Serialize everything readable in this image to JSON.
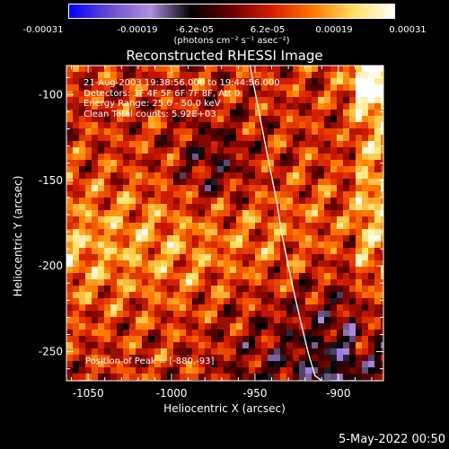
{
  "colorbar": {
    "tick_labels": [
      "-0.00031",
      "-0.00019",
      "-6.2e-05",
      "6.2e-05",
      "0.00019",
      "0.00031"
    ],
    "units": "(photons cm⁻² s⁻¹ asec⁻²)",
    "range": [
      -0.00031,
      0.00031
    ],
    "colors": [
      "#0000ff",
      "#6a4cd0",
      "#b090e0",
      "#000000",
      "#6a0000",
      "#d81e00",
      "#ff7800",
      "#ffe060",
      "#ffffff"
    ]
  },
  "chart_data": {
    "type": "heatmap",
    "title": "Reconstructed RHESSI Image",
    "xlabel": "Heliocentric X (arcsec)",
    "ylabel": "Heliocentric Y (arcsec)",
    "xlim": [
      -1063,
      -873
    ],
    "ylim": [
      -267,
      -83
    ],
    "x_ticks": [
      -1050,
      -1000,
      -950,
      -900
    ],
    "y_ticks": [
      -250,
      -200,
      -150,
      -100
    ],
    "x_tick_labels": [
      "-1050",
      "-1000",
      "-950",
      "-900"
    ],
    "y_tick_labels": [
      "-250",
      "-200",
      "-150",
      "-100"
    ],
    "limb_curve": {
      "x": [
        -953,
        -949,
        -945,
        -941,
        -937,
        -934,
        -930,
        -926,
        -922,
        -918,
        -914,
        -910
      ],
      "y": [
        -83,
        -103,
        -123,
        -143,
        -162,
        -181,
        -200,
        -218,
        -235,
        -251,
        -264,
        -267
      ]
    },
    "peak": {
      "x": -880,
      "y": -93
    },
    "peak_label": "Position of Peak = [-880,-93]",
    "info_lines": [
      "21-Aug-2003 19:38:56.000 to 19:44:56.000",
      "Detectors: 3F 4F 5F 6F 7F 8F, Att 0",
      "Energy Range: 25.0 - 50.0 keV",
      "Clean     Total counts: 5.92E+03"
    ]
  },
  "footer": {
    "date": "5-May-2022 00:50"
  }
}
